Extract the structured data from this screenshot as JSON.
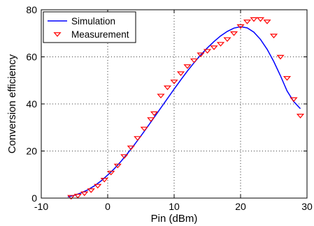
{
  "chart_data": {
    "type": "line",
    "title": "",
    "xlabel": "Pin (dBm)",
    "ylabel": "Conversion efficiency",
    "xlim": [
      -10,
      30
    ],
    "ylim": [
      0,
      80
    ],
    "xticks": [
      -10,
      0,
      10,
      20,
      30
    ],
    "yticks": [
      0,
      20,
      40,
      60,
      80
    ],
    "grid": true,
    "grid_style": "dotted",
    "legend_position": "top-left",
    "series": [
      {
        "name": "Simulation",
        "style": "solid-line",
        "color": "#0000ff",
        "x": [
          -6,
          -5,
          -4,
          -3,
          -2,
          -1,
          0,
          1,
          2,
          3,
          4,
          5,
          6,
          7,
          8,
          9,
          10,
          11,
          12,
          13,
          14,
          15,
          16,
          17,
          18,
          19,
          20,
          21,
          22,
          23,
          24,
          25,
          26,
          27,
          28,
          29
        ],
        "y": [
          0.5,
          1.2,
          2.2,
          3.5,
          5.2,
          7.3,
          9.8,
          12.5,
          15.6,
          19.0,
          22.6,
          26.4,
          30.3,
          34.3,
          38.3,
          42.3,
          46.3,
          50.2,
          54.0,
          57.5,
          60.8,
          63.8,
          66.5,
          68.9,
          70.8,
          72.2,
          72.8,
          72.3,
          70.5,
          67.4,
          63.2,
          58.0,
          52.0,
          45.5,
          41.0,
          38.0
        ]
      },
      {
        "name": "Measurement",
        "style": "triangle-down-markers",
        "color": "#ff0000",
        "x": [
          -5.5,
          -4.5,
          -3.5,
          -2.5,
          -1.5,
          -0.5,
          0.5,
          1.5,
          2.5,
          3.5,
          4.5,
          5.5,
          6.5,
          7,
          8,
          9,
          10,
          11,
          12,
          13,
          14,
          15,
          16,
          17,
          18,
          19,
          20,
          21,
          22,
          23,
          24,
          25,
          26,
          27,
          28,
          29
        ],
        "y": [
          0.5,
          1.0,
          2.0,
          3.3,
          5.2,
          7.8,
          10.8,
          13.8,
          17.8,
          21.5,
          25.5,
          29.5,
          33.5,
          36.0,
          43.5,
          47.0,
          49.5,
          53.0,
          56.0,
          58.5,
          61.0,
          62.5,
          64.0,
          65.5,
          67.5,
          70.0,
          73.0,
          75.0,
          76.0,
          76.0,
          75.0,
          69.0,
          60.0,
          51.0,
          42.0,
          35.0
        ]
      }
    ]
  }
}
